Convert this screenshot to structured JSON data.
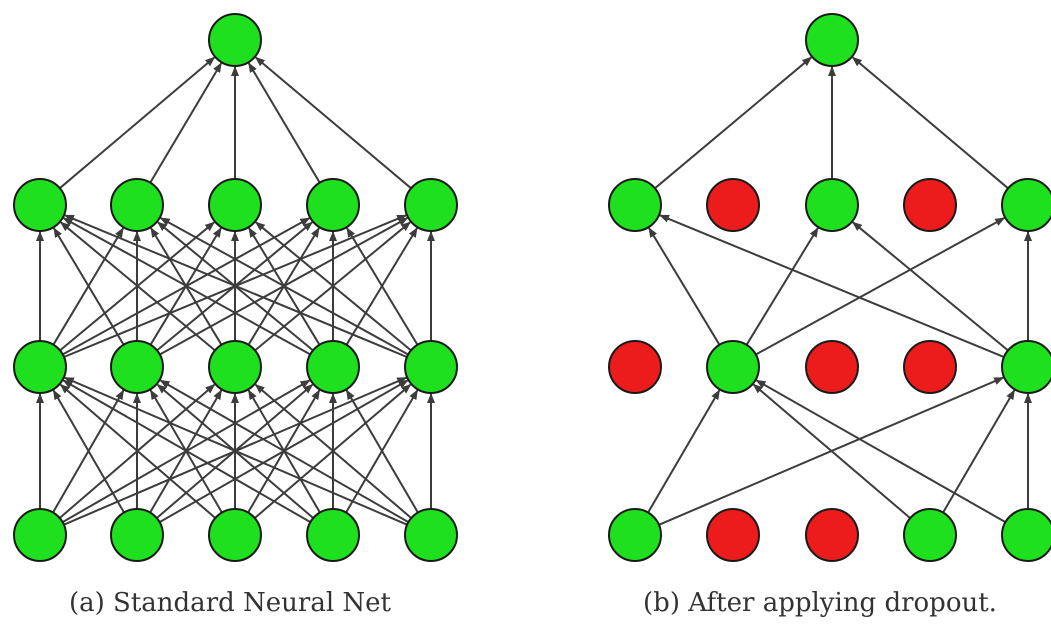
{
  "colors": {
    "active": "#1ee01e",
    "dropped": "#ec1c1c",
    "edge": "#3c3c3c",
    "node_border": "#1a1a1a"
  },
  "panels": [
    {
      "id": "standard",
      "caption": "(a) Standard Neural Net",
      "layers": [
        {
          "nodes": [
            true,
            true,
            true,
            true,
            true
          ]
        },
        {
          "nodes": [
            true,
            true,
            true,
            true,
            true
          ]
        },
        {
          "nodes": [
            true,
            true,
            true,
            true,
            true
          ]
        },
        {
          "nodes": [
            true
          ]
        }
      ],
      "connections": "full"
    },
    {
      "id": "dropout",
      "caption": "(b) After applying dropout.",
      "layers": [
        {
          "nodes": [
            true,
            false,
            false,
            true,
            true
          ]
        },
        {
          "nodes": [
            false,
            true,
            false,
            false,
            true
          ]
        },
        {
          "nodes": [
            true,
            false,
            true,
            false,
            true
          ]
        },
        {
          "nodes": [
            true
          ]
        }
      ],
      "connections": "active-only"
    }
  ]
}
